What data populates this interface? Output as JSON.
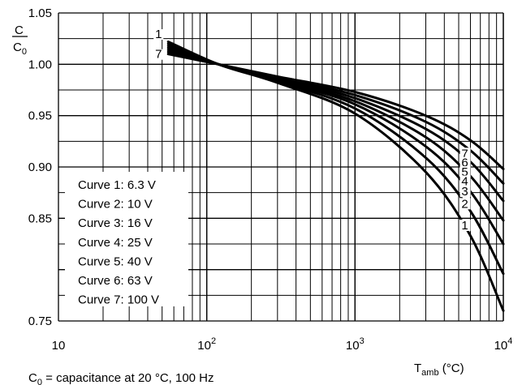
{
  "chart_data": {
    "type": "line",
    "title": "",
    "ylabel": {
      "numerator": "C",
      "denominator_main": "C",
      "denominator_sub": "0"
    },
    "xlabel": {
      "main": "T",
      "sub": "amb",
      "unit": " (°C)"
    },
    "xscale": "log",
    "xlim": [
      10,
      10000
    ],
    "ylim": [
      0.75,
      1.05
    ],
    "grid": true,
    "x_ticks": [
      {
        "base": "10",
        "exp": ""
      },
      {
        "base": "10",
        "exp": "2"
      },
      {
        "base": "10",
        "exp": "3"
      },
      {
        "base": "10",
        "exp": "4"
      }
    ],
    "y_ticks": [
      "0.75",
      "0.85",
      "0.90",
      "0.95",
      "1.00",
      "1.05"
    ],
    "series": [
      {
        "name": "1",
        "x": [
          55,
          120,
          300,
          1000,
          3000,
          6000,
          10000
        ],
        "y": [
          1.022,
          1.0,
          0.982,
          0.952,
          0.895,
          0.833,
          0.76
        ]
      },
      {
        "name": "2",
        "x": [
          55,
          120,
          300,
          1000,
          3000,
          6000,
          10000
        ],
        "y": [
          1.02,
          1.0,
          0.983,
          0.957,
          0.909,
          0.857,
          0.796
        ]
      },
      {
        "name": "3",
        "x": [
          55,
          120,
          300,
          1000,
          3000,
          6000,
          10000
        ],
        "y": [
          1.018,
          1.0,
          0.984,
          0.961,
          0.92,
          0.876,
          0.825
        ]
      },
      {
        "name": "4",
        "x": [
          55,
          120,
          300,
          1000,
          3000,
          6000,
          10000
        ],
        "y": [
          1.016,
          1.0,
          0.985,
          0.964,
          0.929,
          0.891,
          0.848
        ]
      },
      {
        "name": "5",
        "x": [
          55,
          120,
          300,
          1000,
          3000,
          6000,
          10000
        ],
        "y": [
          1.014,
          1.0,
          0.986,
          0.967,
          0.937,
          0.905,
          0.867
        ]
      },
      {
        "name": "6",
        "x": [
          55,
          120,
          300,
          1000,
          3000,
          6000,
          10000
        ],
        "y": [
          1.012,
          1.0,
          0.987,
          0.97,
          0.944,
          0.916,
          0.884
        ]
      },
      {
        "name": "7",
        "x": [
          55,
          120,
          300,
          1000,
          3000,
          6000,
          10000
        ],
        "y": [
          1.01,
          1.0,
          0.988,
          0.973,
          0.95,
          0.926,
          0.898
        ]
      }
    ],
    "start_labels": [
      "1",
      "7"
    ],
    "end_labels": [
      "7",
      "6",
      "5",
      "4",
      "3",
      "2",
      "1"
    ],
    "legend": {
      "placement": "bottom-left",
      "entries": [
        "Curve 1: 6.3 V",
        "Curve 2: 10 V",
        "Curve 3: 16 V",
        "Curve 4: 25 V",
        "Curve 5: 40 V",
        "Curve 6: 63 V",
        "Curve 7: 100 V"
      ]
    },
    "caption": {
      "main": "C",
      "sub": "0",
      "rest": " = capacitance at 20 °C, 100 Hz"
    }
  }
}
